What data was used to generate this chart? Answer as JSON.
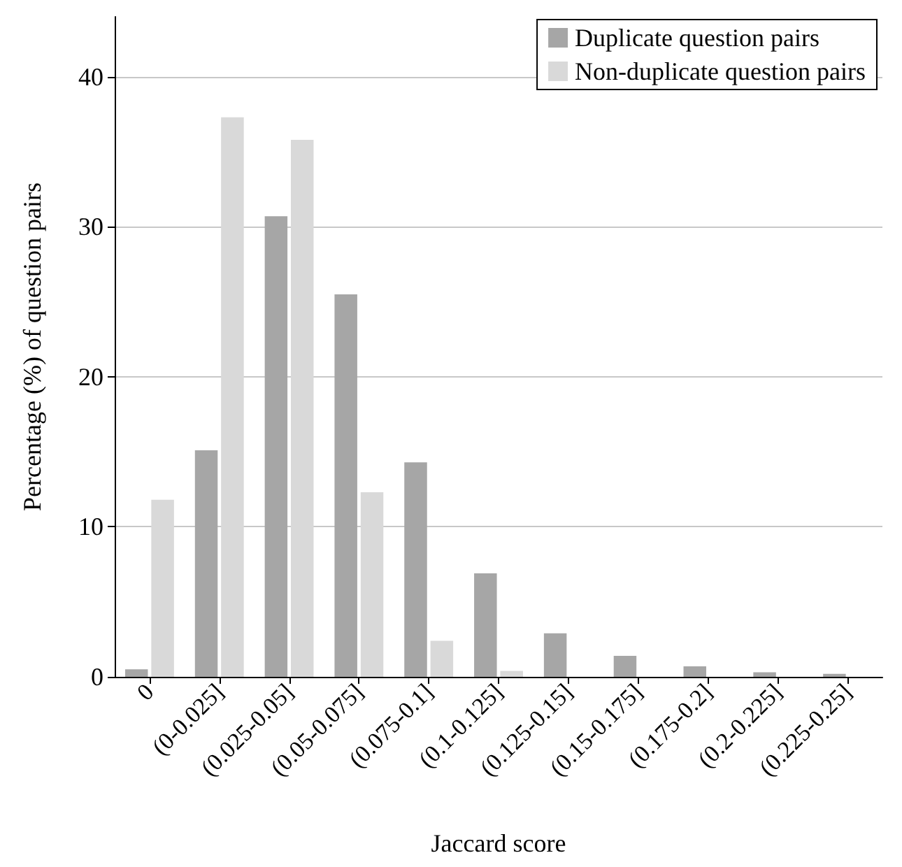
{
  "chart_data": {
    "type": "bar",
    "xlabel": "Jaccard score",
    "ylabel": "Percentage (%) of question pairs",
    "categories": [
      "0",
      "(0-0.025]",
      "(0.025-0.05]",
      "(0.05-0.075]",
      "(0.075-0.1]",
      "(0.1-0.125]",
      "(0.125-0.15]",
      "(0.15-0.175]",
      "(0.175-0.2]",
      "(0.2-0.225]",
      "(0.225-0.25]"
    ],
    "series": [
      {
        "name": "Duplicate question pairs",
        "color": "#a6a6a6",
        "values": [
          0.5,
          15.1,
          30.7,
          25.5,
          14.3,
          6.9,
          2.9,
          1.4,
          0.7,
          0.3,
          0.2
        ]
      },
      {
        "name": "Non-duplicate question pairs",
        "color": "#d9d9d9",
        "values": [
          11.8,
          37.3,
          35.8,
          12.3,
          2.4,
          0.4,
          0,
          0,
          0,
          0,
          0
        ]
      }
    ],
    "ylim": [
      0,
      44
    ],
    "yticks": [
      0,
      10,
      20,
      30,
      40
    ],
    "grid": "y",
    "legend": "top right"
  }
}
